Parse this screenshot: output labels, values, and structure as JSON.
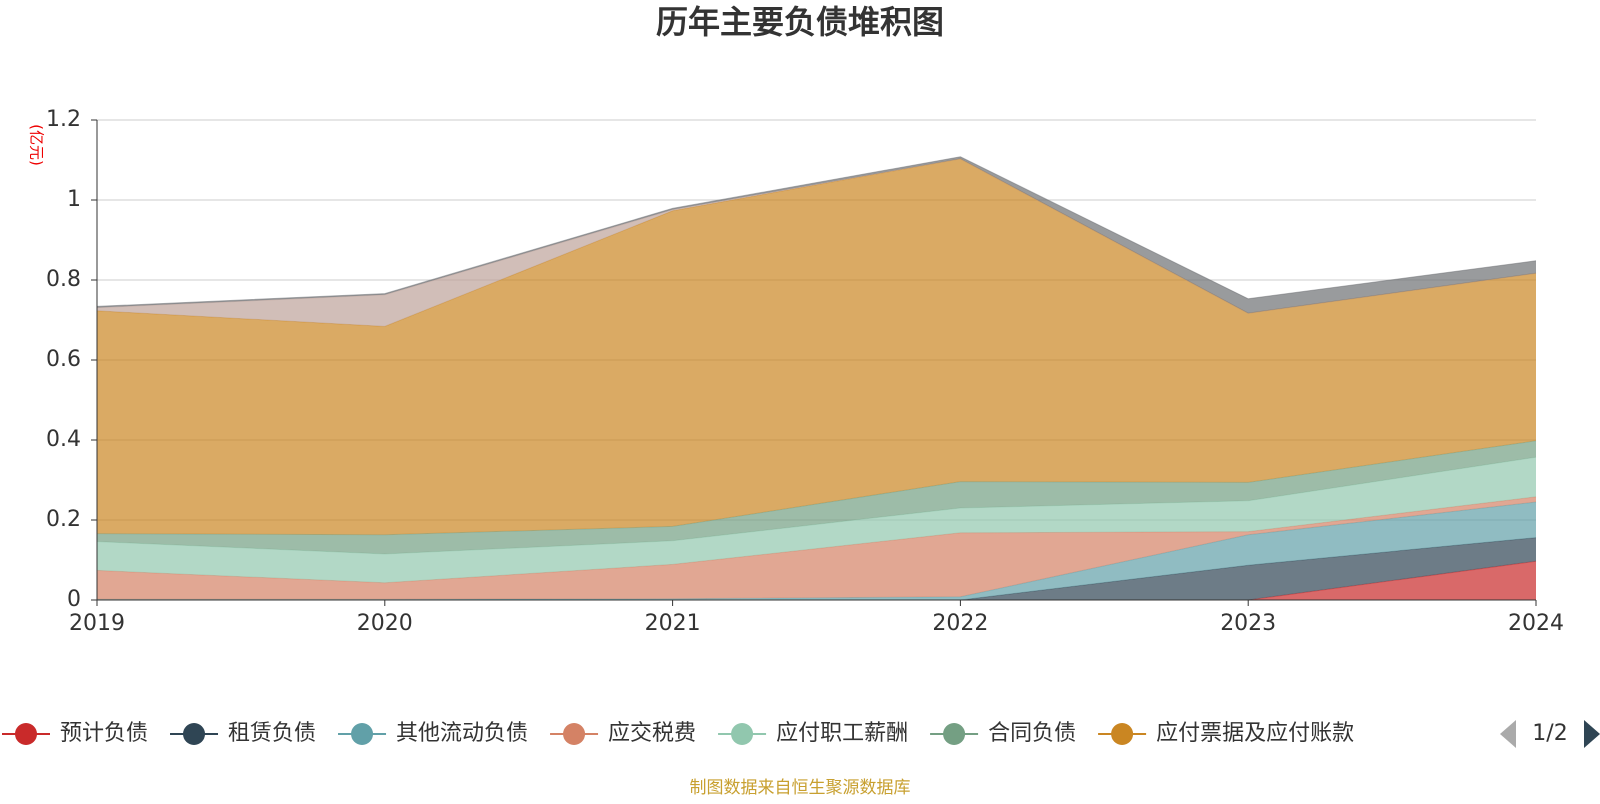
{
  "chart_data": {
    "type": "area",
    "stacked": true,
    "title": "历年主要负债堆积图",
    "y_unit": "(亿元)",
    "source": "制图数据来自恒生聚源数据库",
    "legend_page": "1/2",
    "categories": [
      "2019",
      "2020",
      "2021",
      "2022",
      "2023",
      "2024"
    ],
    "ylim": [
      0,
      1.2
    ],
    "yticks": [
      0,
      0.2,
      0.4,
      0.6,
      0.8,
      1,
      1.2
    ],
    "grid": true,
    "series": [
      {
        "name": "预计负债",
        "color": "#c92a2a",
        "values": [
          0,
          0,
          0,
          0,
          0,
          0.097
        ]
      },
      {
        "name": "租赁负债",
        "color": "#2f4554",
        "values": [
          0,
          0,
          0,
          0,
          0.087,
          0.059
        ]
      },
      {
        "name": "其他流动负债",
        "color": "#61a0a8",
        "values": [
          0.002,
          0.002,
          0.003,
          0.008,
          0.076,
          0.089
        ]
      },
      {
        "name": "应交税费",
        "color": "#d48265",
        "values": [
          0.072,
          0.041,
          0.086,
          0.16,
          0.008,
          0.013
        ]
      },
      {
        "name": "应付职工薪酬",
        "color": "#91c7ae",
        "values": [
          0.072,
          0.072,
          0.059,
          0.062,
          0.077,
          0.099
        ]
      },
      {
        "name": "合同负债",
        "color": "#749f83",
        "values": [
          0.02,
          0.048,
          0.036,
          0.066,
          0.046,
          0.041
        ]
      },
      {
        "name": "应付票据及应付账款",
        "color": "#ca8622",
        "values": [
          0.557,
          0.521,
          0.789,
          0.807,
          0.423,
          0.419
        ]
      },
      {
        "color": "#bda29a",
        "values": [
          0.008,
          0.079,
          0.003,
          0,
          0,
          0
        ]
      },
      {
        "color": "#6e7074",
        "values": [
          0.003,
          0.003,
          0.003,
          0.005,
          0.036,
          0.031
        ]
      }
    ]
  }
}
